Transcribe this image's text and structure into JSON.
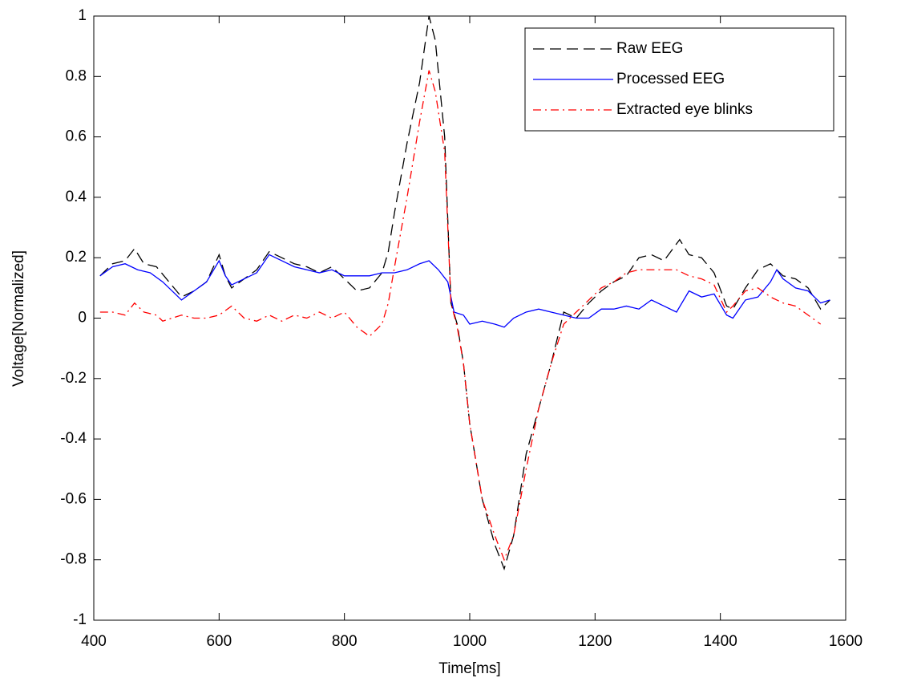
{
  "chart_data": {
    "type": "line",
    "xlabel": "Time[ms]",
    "ylabel": "Voltage[Normalized]",
    "xlim": [
      400,
      1600
    ],
    "xticks": [
      400,
      600,
      800,
      1000,
      1200,
      1400,
      1600
    ],
    "ylim": [
      -1,
      1
    ],
    "yticks": [
      -1,
      -0.8,
      -0.6,
      -0.4,
      -0.2,
      0,
      0.2,
      0.4,
      0.6,
      0.8,
      1
    ],
    "grid": false,
    "legend": "upper right",
    "series": [
      {
        "name": "Raw EEG",
        "color": "#000000",
        "dash": "dashed",
        "x": [
          410,
          430,
          450,
          465,
          480,
          500,
          520,
          540,
          560,
          580,
          600,
          610,
          620,
          640,
          660,
          680,
          700,
          720,
          740,
          760,
          780,
          800,
          820,
          840,
          860,
          870,
          880,
          900,
          920,
          935,
          945,
          960,
          970,
          980,
          990,
          1000,
          1020,
          1040,
          1055,
          1070,
          1090,
          1110,
          1130,
          1150,
          1170,
          1190,
          1210,
          1230,
          1250,
          1270,
          1290,
          1310,
          1335,
          1350,
          1370,
          1390,
          1410,
          1420,
          1440,
          1460,
          1480,
          1500,
          1520,
          1540,
          1560,
          1575
        ],
        "values": [
          0.14,
          0.18,
          0.19,
          0.23,
          0.18,
          0.17,
          0.12,
          0.07,
          0.09,
          0.12,
          0.21,
          0.14,
          0.1,
          0.13,
          0.16,
          0.22,
          0.2,
          0.18,
          0.17,
          0.15,
          0.17,
          0.13,
          0.09,
          0.1,
          0.15,
          0.22,
          0.35,
          0.58,
          0.78,
          1.0,
          0.92,
          0.6,
          0.05,
          -0.02,
          -0.15,
          -0.35,
          -0.6,
          -0.75,
          -0.83,
          -0.72,
          -0.45,
          -0.3,
          -0.15,
          0.02,
          0.0,
          0.05,
          0.09,
          0.12,
          0.14,
          0.2,
          0.21,
          0.19,
          0.26,
          0.21,
          0.2,
          0.15,
          0.04,
          0.03,
          0.1,
          0.16,
          0.18,
          0.14,
          0.13,
          0.1,
          0.03,
          0.06
        ]
      },
      {
        "name": "Processed EEG",
        "color": "#0000ff",
        "dash": "solid",
        "x": [
          410,
          430,
          450,
          470,
          490,
          510,
          540,
          560,
          580,
          600,
          610,
          620,
          640,
          660,
          680,
          700,
          720,
          740,
          760,
          780,
          800,
          820,
          840,
          860,
          880,
          900,
          920,
          935,
          950,
          965,
          975,
          990,
          1000,
          1020,
          1040,
          1055,
          1070,
          1090,
          1110,
          1130,
          1150,
          1170,
          1190,
          1210,
          1230,
          1250,
          1270,
          1290,
          1310,
          1330,
          1350,
          1370,
          1390,
          1410,
          1420,
          1440,
          1460,
          1480,
          1490,
          1500,
          1520,
          1540,
          1560,
          1575
        ],
        "values": [
          0.14,
          0.17,
          0.18,
          0.16,
          0.15,
          0.12,
          0.06,
          0.09,
          0.12,
          0.19,
          0.14,
          0.11,
          0.13,
          0.15,
          0.21,
          0.19,
          0.17,
          0.16,
          0.15,
          0.16,
          0.14,
          0.14,
          0.14,
          0.15,
          0.15,
          0.16,
          0.18,
          0.19,
          0.16,
          0.12,
          0.02,
          0.01,
          -0.02,
          -0.01,
          -0.02,
          -0.03,
          0.0,
          0.02,
          0.03,
          0.02,
          0.01,
          0.0,
          0.0,
          0.03,
          0.03,
          0.04,
          0.03,
          0.06,
          0.04,
          0.02,
          0.09,
          0.07,
          0.08,
          0.01,
          0.0,
          0.06,
          0.07,
          0.12,
          0.16,
          0.13,
          0.1,
          0.09,
          0.05,
          0.06
        ]
      },
      {
        "name": "Extracted eye blinks",
        "color": "#ff0000",
        "dash": "dashdot",
        "x": [
          410,
          430,
          450,
          465,
          480,
          500,
          510,
          540,
          560,
          580,
          600,
          620,
          640,
          660,
          680,
          700,
          720,
          740,
          760,
          780,
          800,
          820,
          840,
          860,
          870,
          880,
          900,
          920,
          935,
          945,
          960,
          970,
          980,
          990,
          1000,
          1020,
          1040,
          1055,
          1070,
          1090,
          1110,
          1130,
          1150,
          1170,
          1190,
          1210,
          1230,
          1250,
          1270,
          1290,
          1310,
          1330,
          1350,
          1370,
          1390,
          1410,
          1420,
          1440,
          1460,
          1480,
          1500,
          1520,
          1540,
          1560
        ],
        "values": [
          0.02,
          0.02,
          0.01,
          0.05,
          0.02,
          0.01,
          -0.01,
          0.01,
          0.0,
          0.0,
          0.01,
          0.04,
          0.0,
          -0.01,
          0.01,
          -0.01,
          0.01,
          0.0,
          0.02,
          0.0,
          0.02,
          -0.03,
          -0.06,
          -0.02,
          0.05,
          0.17,
          0.4,
          0.65,
          0.82,
          0.75,
          0.55,
          0.05,
          -0.03,
          -0.15,
          -0.35,
          -0.6,
          -0.72,
          -0.8,
          -0.72,
          -0.5,
          -0.3,
          -0.15,
          -0.02,
          0.02,
          0.06,
          0.1,
          0.12,
          0.15,
          0.16,
          0.16,
          0.16,
          0.16,
          0.14,
          0.13,
          0.11,
          0.02,
          0.04,
          0.09,
          0.1,
          0.07,
          0.05,
          0.04,
          0.01,
          -0.02
        ]
      }
    ]
  }
}
